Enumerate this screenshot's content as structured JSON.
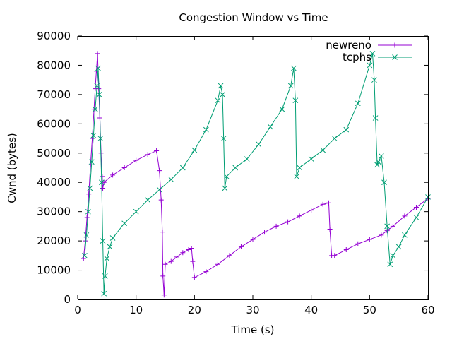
{
  "chart_data": {
    "type": "line",
    "title": "Congestion Window vs Time",
    "xlabel": "Time (s)",
    "ylabel": "Cwnd (bytes)",
    "xlim": [
      0,
      60
    ],
    "ylim": [
      0,
      90000
    ],
    "xticks": [
      0,
      10,
      20,
      30,
      40,
      50,
      60
    ],
    "yticks": [
      0,
      10000,
      20000,
      30000,
      40000,
      50000,
      60000,
      70000,
      80000,
      90000
    ],
    "grid": false,
    "legend_position": "top-right",
    "series": [
      {
        "name": "newreno",
        "color": "#9400d3",
        "marker": "plus",
        "x": [
          1.0,
          1.3,
          1.6,
          1.9,
          2.2,
          2.5,
          2.8,
          3.0,
          3.2,
          3.4,
          3.6,
          3.8,
          4.0,
          4.2,
          4.3,
          4.5,
          6,
          8,
          10,
          12,
          13.5,
          14.0,
          14.3,
          14.5,
          14.6,
          14.8,
          15.0,
          16,
          17,
          18,
          19,
          19.5,
          19.7,
          20.0,
          22,
          24,
          26,
          28,
          30,
          32,
          34,
          36,
          38,
          40,
          42,
          43.0,
          43.2,
          43.5,
          44,
          46,
          48,
          50,
          52,
          53,
          54,
          56,
          58,
          60
        ],
        "y": [
          14000,
          20000,
          28000,
          36000,
          46000,
          55000,
          65000,
          72000,
          78000,
          84000,
          72000,
          62000,
          50000,
          42000,
          38000,
          40000,
          42500,
          45000,
          47500,
          49500,
          50800,
          44000,
          34000,
          23000,
          8000,
          1500,
          12000,
          13000,
          14500,
          16000,
          17000,
          17500,
          13000,
          7500,
          9500,
          12000,
          15000,
          18000,
          20500,
          23000,
          25000,
          26500,
          28500,
          30500,
          32500,
          33000,
          24000,
          15000,
          15000,
          17000,
          19000,
          20500,
          22000,
          23500,
          25000,
          28500,
          31500,
          34500
        ]
      },
      {
        "name": "tcphs",
        "color": "#009e73",
        "marker": "cross",
        "x": [
          1.2,
          1.5,
          1.8,
          2.1,
          2.4,
          2.7,
          3.0,
          3.3,
          3.5,
          3.7,
          3.9,
          4.1,
          4.3,
          4.5,
          4.7,
          5.0,
          5.5,
          6,
          8,
          10,
          12,
          14,
          16,
          18,
          20,
          22,
          24,
          24.5,
          24.8,
          25.0,
          25.2,
          25.5,
          27,
          29,
          31,
          33,
          35,
          36.5,
          37.0,
          37.3,
          37.5,
          38,
          40,
          42,
          44,
          46,
          48,
          50,
          50.5,
          50.8,
          51.0,
          51.3,
          51.5,
          52,
          52.5,
          53,
          53.5,
          54,
          55,
          56,
          58,
          60
        ],
        "y": [
          15000,
          22000,
          30000,
          38000,
          47000,
          56000,
          65000,
          73000,
          79000,
          70000,
          55000,
          40000,
          20000,
          2000,
          8000,
          14000,
          18000,
          21000,
          26000,
          30000,
          34000,
          37500,
          41000,
          45000,
          51000,
          58000,
          68000,
          73000,
          70000,
          55000,
          38000,
          42000,
          45000,
          48000,
          53000,
          59000,
          65000,
          73000,
          79000,
          68000,
          42000,
          45000,
          48000,
          51000,
          55000,
          58000,
          67000,
          80000,
          84000,
          75000,
          62000,
          46000,
          47000,
          49000,
          40000,
          25000,
          12000,
          15000,
          18000,
          22000,
          28000,
          35000
        ]
      }
    ]
  }
}
